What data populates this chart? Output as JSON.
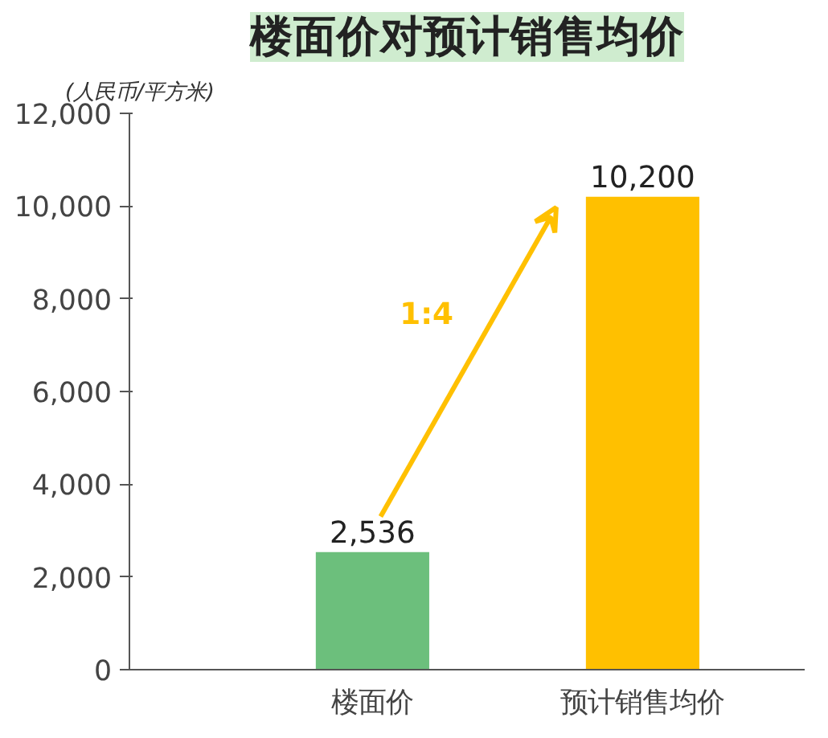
{
  "chart_data": {
    "type": "bar",
    "title": "楼面价对预计销售均价",
    "ylabel": "(人民币/平方米)",
    "categories": [
      "楼面价",
      "预计销售均价"
    ],
    "values": [
      2536,
      10200
    ],
    "colors": [
      "#6cbf7c",
      "#ffc000"
    ],
    "ylim": [
      0,
      12000
    ],
    "yticks": [
      {
        "value": 0,
        "label": "0"
      },
      {
        "value": 2000,
        "label": "2,000"
      },
      {
        "value": 4000,
        "label": "4,000"
      },
      {
        "value": 6000,
        "label": "6,000"
      },
      {
        "value": 8000,
        "label": "8,000"
      },
      {
        "value": 10000,
        "label": "10,000"
      },
      {
        "value": 12000,
        "label": "12,000"
      }
    ],
    "value_labels": [
      "2,536",
      "10,200"
    ],
    "grid": false,
    "annotations": [
      "1:4"
    ]
  }
}
